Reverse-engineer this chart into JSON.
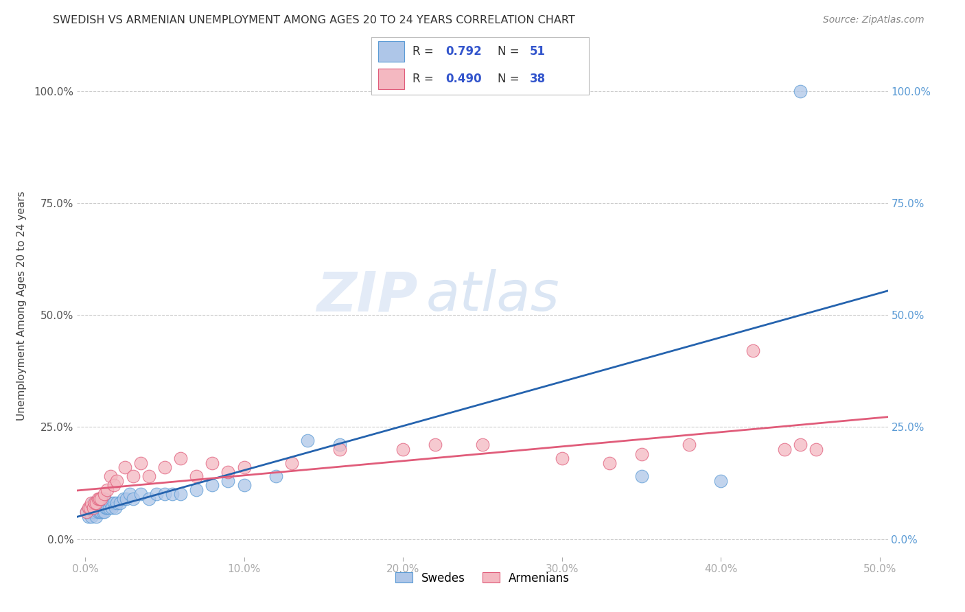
{
  "title": "SWEDISH VS ARMENIAN UNEMPLOYMENT AMONG AGES 20 TO 24 YEARS CORRELATION CHART",
  "source": "Source: ZipAtlas.com",
  "xlabel_tick_vals": [
    0.0,
    0.1,
    0.2,
    0.3,
    0.4,
    0.5
  ],
  "ylabel": "Unemployment Among Ages 20 to 24 years",
  "ylabel_tick_vals": [
    0.0,
    0.25,
    0.5,
    0.75,
    1.0
  ],
  "xlim": [
    -0.005,
    0.505
  ],
  "ylim": [
    -0.04,
    1.08
  ],
  "swedes_color": "#aec6e8",
  "armenians_color": "#f4b8c1",
  "swedes_edge_color": "#5b9bd5",
  "armenians_edge_color": "#e05c7a",
  "swedes_line_color": "#2563ae",
  "armenians_line_color": "#e05c7a",
  "right_tick_color": "#5b9bd5",
  "legend_R_color": "#3355cc",
  "R_swedes": "0.792",
  "N_swedes": "51",
  "R_armenians": "0.490",
  "N_armenians": "38",
  "watermark_zip": "ZIP",
  "watermark_atlas": "atlas",
  "swedes_x": [
    0.001,
    0.002,
    0.003,
    0.003,
    0.004,
    0.004,
    0.005,
    0.005,
    0.006,
    0.006,
    0.007,
    0.007,
    0.008,
    0.008,
    0.009,
    0.009,
    0.01,
    0.01,
    0.011,
    0.011,
    0.012,
    0.012,
    0.013,
    0.014,
    0.015,
    0.016,
    0.017,
    0.018,
    0.019,
    0.02,
    0.022,
    0.024,
    0.026,
    0.028,
    0.03,
    0.035,
    0.04,
    0.045,
    0.05,
    0.055,
    0.06,
    0.07,
    0.08,
    0.09,
    0.1,
    0.12,
    0.14,
    0.16,
    0.35,
    0.4,
    0.45
  ],
  "swedes_y": [
    0.06,
    0.05,
    0.06,
    0.07,
    0.05,
    0.07,
    0.06,
    0.08,
    0.06,
    0.07,
    0.05,
    0.08,
    0.06,
    0.07,
    0.06,
    0.08,
    0.06,
    0.08,
    0.06,
    0.08,
    0.06,
    0.09,
    0.07,
    0.07,
    0.07,
    0.08,
    0.07,
    0.08,
    0.07,
    0.08,
    0.08,
    0.09,
    0.09,
    0.1,
    0.09,
    0.1,
    0.09,
    0.1,
    0.1,
    0.1,
    0.1,
    0.11,
    0.12,
    0.13,
    0.12,
    0.14,
    0.22,
    0.21,
    0.14,
    0.13,
    1.0
  ],
  "armenians_x": [
    0.001,
    0.002,
    0.003,
    0.004,
    0.005,
    0.006,
    0.007,
    0.008,
    0.009,
    0.01,
    0.012,
    0.014,
    0.016,
    0.018,
    0.02,
    0.025,
    0.03,
    0.035,
    0.04,
    0.05,
    0.06,
    0.07,
    0.08,
    0.09,
    0.1,
    0.13,
    0.16,
    0.2,
    0.22,
    0.25,
    0.3,
    0.33,
    0.35,
    0.38,
    0.42,
    0.44,
    0.45,
    0.46
  ],
  "armenians_y": [
    0.06,
    0.07,
    0.07,
    0.08,
    0.07,
    0.08,
    0.08,
    0.09,
    0.09,
    0.09,
    0.1,
    0.11,
    0.14,
    0.12,
    0.13,
    0.16,
    0.14,
    0.17,
    0.14,
    0.16,
    0.18,
    0.14,
    0.17,
    0.15,
    0.16,
    0.17,
    0.2,
    0.2,
    0.21,
    0.21,
    0.18,
    0.17,
    0.19,
    0.21,
    0.42,
    0.2,
    0.21,
    0.2
  ]
}
